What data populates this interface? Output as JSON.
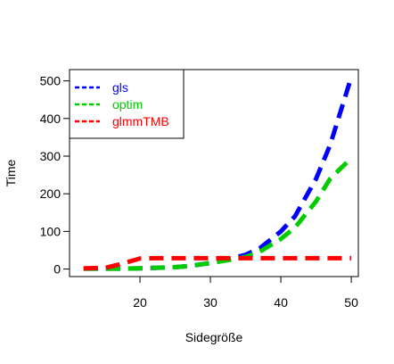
{
  "chart_data": {
    "type": "line",
    "xlabel": "Sidegröße",
    "ylabel": "Time",
    "xlim": [
      10,
      51
    ],
    "ylim": [
      -20,
      530
    ],
    "xticks": [
      20,
      30,
      40,
      50
    ],
    "yticks": [
      0,
      100,
      200,
      300,
      400,
      500
    ],
    "grid": false,
    "legend_position": "top-left",
    "x": [
      12,
      15,
      17,
      20,
      22,
      25,
      27,
      30,
      32,
      35,
      37,
      40,
      42,
      45,
      47,
      50
    ],
    "series": [
      {
        "name": "gls",
        "color": "#0000ff",
        "values": [
          1,
          1,
          1,
          2,
          3,
          5,
          8,
          16,
          24,
          38,
          55,
          100,
          140,
          240,
          330,
          510
        ]
      },
      {
        "name": "optim",
        "color": "#00cc00",
        "values": [
          1,
          1,
          1,
          2,
          3,
          5,
          8,
          16,
          22,
          32,
          46,
          80,
          110,
          180,
          240,
          295
        ]
      },
      {
        "name": "glmmTMB",
        "color": "#ff0000",
        "values": [
          2,
          3,
          12,
          28,
          29,
          29,
          29,
          29,
          29,
          29,
          29,
          29,
          29,
          29,
          29,
          29
        ]
      }
    ]
  }
}
